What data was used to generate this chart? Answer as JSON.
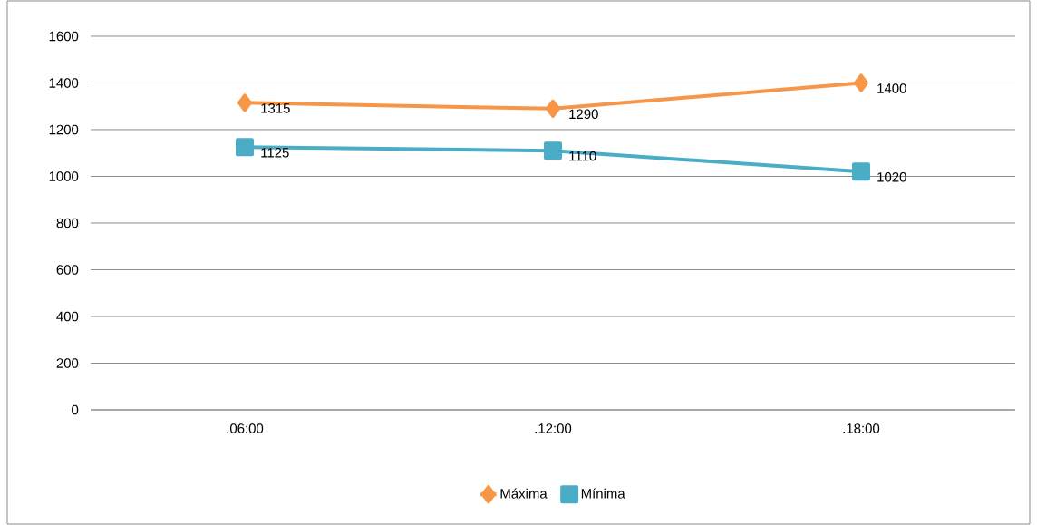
{
  "chart_data": {
    "type": "line",
    "categories": [
      ".06:00",
      ".12:00",
      ".18:00"
    ],
    "series": [
      {
        "name": "Máxima",
        "color": "#f79646",
        "marker": "diamond",
        "values": [
          1315,
          1290,
          1400
        ]
      },
      {
        "name": "Mínima",
        "color": "#4bacc6",
        "marker": "square",
        "values": [
          1125,
          1110,
          1020
        ]
      }
    ],
    "ylim": [
      0,
      1600
    ],
    "yticks": [
      0,
      200,
      400,
      600,
      800,
      1000,
      1200,
      1400,
      1600
    ],
    "grid": "y",
    "legend": "bottom",
    "data_labels": true
  }
}
